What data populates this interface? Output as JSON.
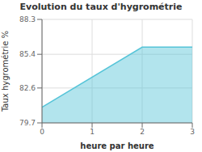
{
  "chart_data": {
    "type": "area",
    "title": "Evolution du taux d'hygrométrie",
    "xlabel": "heure par heure",
    "ylabel": "Taux hygrométrie %",
    "x": [
      0,
      2,
      3
    ],
    "values": [
      81.0,
      86.0,
      86.0
    ],
    "xlim": [
      0,
      3
    ],
    "ylim": [
      79.7,
      88.3
    ],
    "xticks": [
      0,
      1,
      2,
      3
    ],
    "yticks": [
      79.7,
      82.6,
      85.4,
      88.3
    ],
    "color": "#55c4d8",
    "grid": true
  }
}
